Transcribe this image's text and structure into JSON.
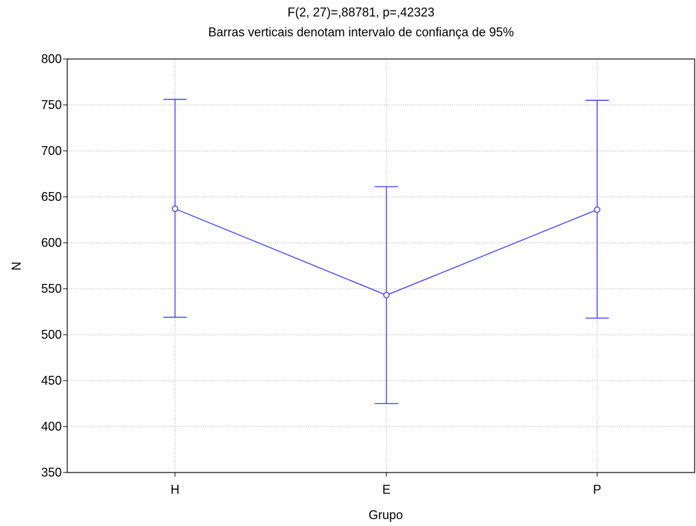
{
  "chart_data": {
    "type": "line",
    "title": "F(2, 27)=,88781, p=,42323",
    "subtitle": "Barras verticais denotam intervalo de confiança de 95%",
    "xlabel": "Grupo",
    "ylabel": "N",
    "categories": [
      "H",
      "E",
      "P"
    ],
    "ylim": [
      350,
      800
    ],
    "yticks": [
      350,
      400,
      450,
      500,
      550,
      600,
      650,
      700,
      750,
      800
    ],
    "grid": true,
    "color": "#3333ff",
    "series": [
      {
        "values": [
          637,
          543,
          636
        ],
        "ci_lower": [
          519,
          425,
          518
        ],
        "ci_upper": [
          756,
          661,
          755
        ]
      }
    ]
  }
}
